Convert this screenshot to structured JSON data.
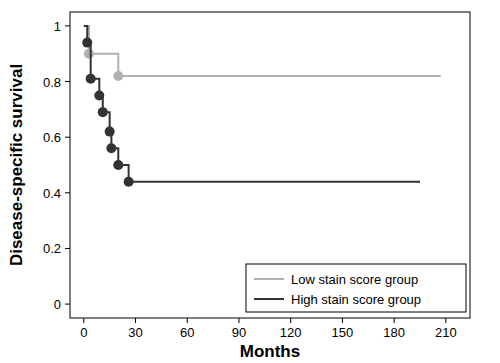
{
  "chart_data": {
    "type": "line",
    "x_label": "Months",
    "y_label": "Disease-specific survival",
    "xlim": [
      -8,
      224
    ],
    "ylim": [
      -0.05,
      1.05
    ],
    "xticks": [
      0,
      30,
      60,
      90,
      120,
      150,
      180,
      210
    ],
    "yticks": [
      0,
      0.2,
      0.4,
      0.6,
      0.8,
      1
    ],
    "legend": "lower right",
    "series": [
      {
        "name": "Low stain score group",
        "color": "#b0b0b0",
        "line_style": "step",
        "marker": "circle",
        "x": [
          0,
          3,
          20,
          207
        ],
        "values": [
          1,
          0.9,
          0.82,
          0.82
        ]
      },
      {
        "name": "High stain score group",
        "color": "#333333",
        "line_style": "step",
        "marker": "circle",
        "x": [
          0,
          2,
          4,
          9,
          11,
          15,
          16,
          20,
          26,
          195
        ],
        "values": [
          1,
          0.94,
          0.81,
          0.75,
          0.69,
          0.62,
          0.56,
          0.5,
          0.44,
          0.44
        ]
      }
    ]
  }
}
